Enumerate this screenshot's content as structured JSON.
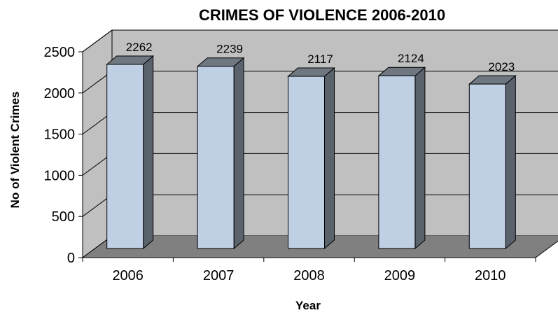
{
  "chart_data": {
    "type": "bar",
    "title": "CRIMES OF VIOLENCE 2006-2010",
    "xlabel": "Year",
    "ylabel": "No of Violent Crimes",
    "categories": [
      "2006",
      "2007",
      "2008",
      "2009",
      "2010"
    ],
    "values": [
      2262,
      2239,
      2117,
      2124,
      2023
    ],
    "data_labels": [
      "2262",
      "2239",
      "2117",
      "2124",
      "2023"
    ],
    "ylim": [
      0,
      2500
    ],
    "yticks": [
      "0",
      "500",
      "1000",
      "1500",
      "2000",
      "2500"
    ],
    "grid": true,
    "legend": "none",
    "style": "3d-column",
    "colors": {
      "bar_front": "#bfcfe4",
      "bar_side": "#5a626b",
      "bar_top": "#6f7780",
      "bar_outline": "#000000",
      "back_wall": "#c0c0c0",
      "side_wall": "#c0c0c0",
      "floor": "#808080",
      "gridline": "#000000"
    }
  }
}
